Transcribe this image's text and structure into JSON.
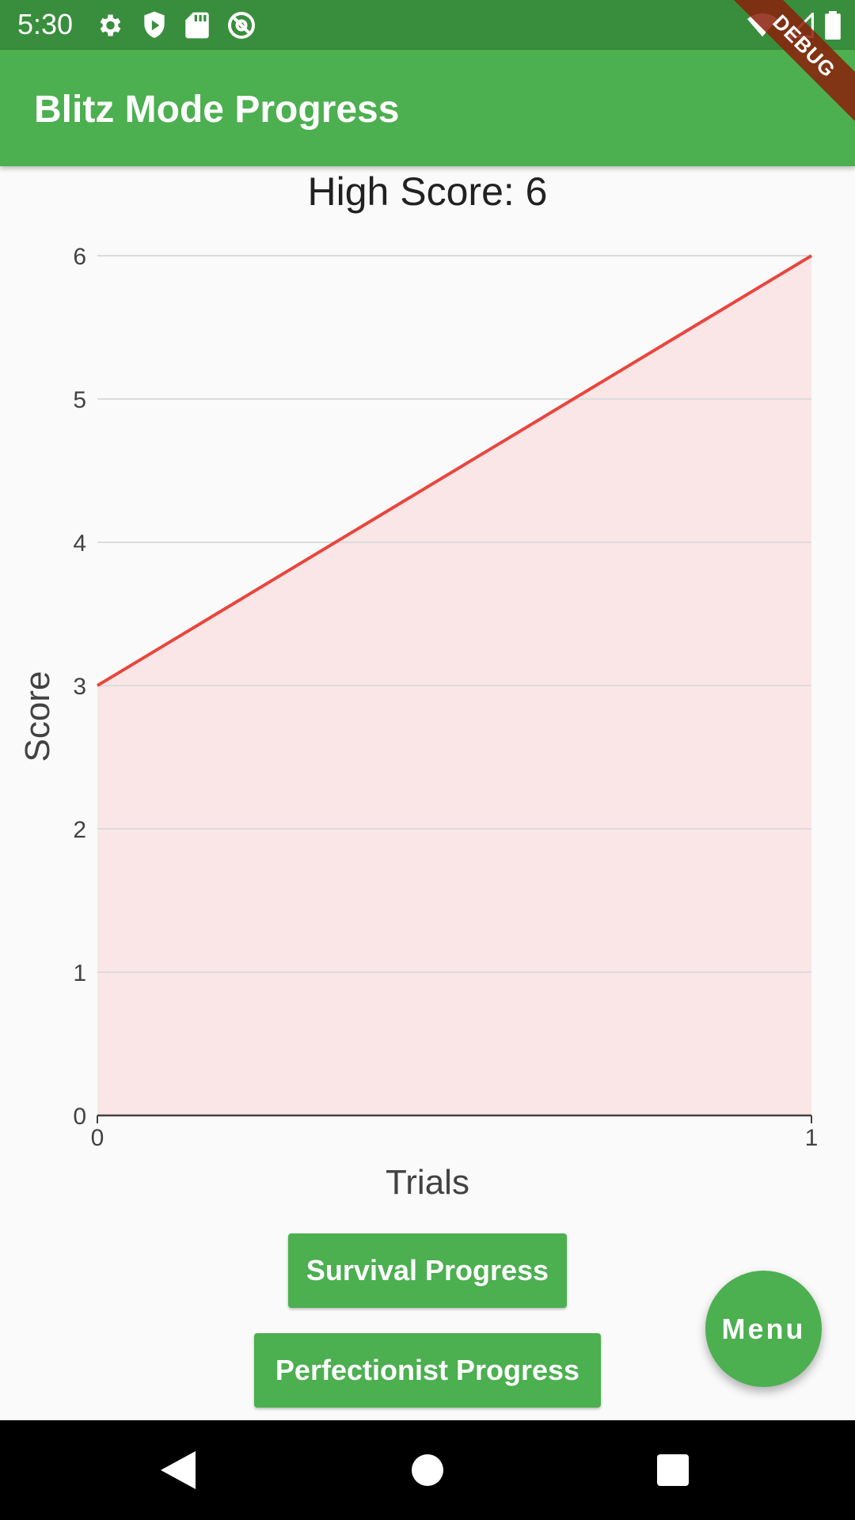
{
  "status_bar": {
    "time": "5:30",
    "icons": [
      "settings-icon",
      "shield-play-icon",
      "sd-card-icon",
      "at-icon",
      "wifi-icon",
      "signal-icon",
      "battery-icon"
    ]
  },
  "app_bar": {
    "title": "Blitz Mode Progress",
    "background": "#4caf50",
    "status_background": "#388e3c"
  },
  "debug_banner": {
    "label": "DEBUG"
  },
  "chart_data": {
    "type": "area",
    "title": "High Score: 6",
    "xlabel": "Trials",
    "ylabel": "Score",
    "x": [
      0,
      1
    ],
    "series": [
      {
        "values": [
          3,
          6
        ],
        "color": "#e8463e",
        "fill": "#fae6e6"
      }
    ],
    "xlim": [
      0,
      1
    ],
    "ylim": [
      0,
      6
    ],
    "xticks": [
      "0",
      "1"
    ],
    "yticks": [
      "0",
      "1",
      "2",
      "3",
      "4",
      "5",
      "6"
    ],
    "grid": true
  },
  "buttons": {
    "survival_label": "Survival Progress",
    "perfectionist_label": "Perfectionist Progress",
    "menu_label": "Menu"
  },
  "nav_bar": {
    "icons": [
      "back-icon",
      "home-icon",
      "recents-icon"
    ]
  }
}
